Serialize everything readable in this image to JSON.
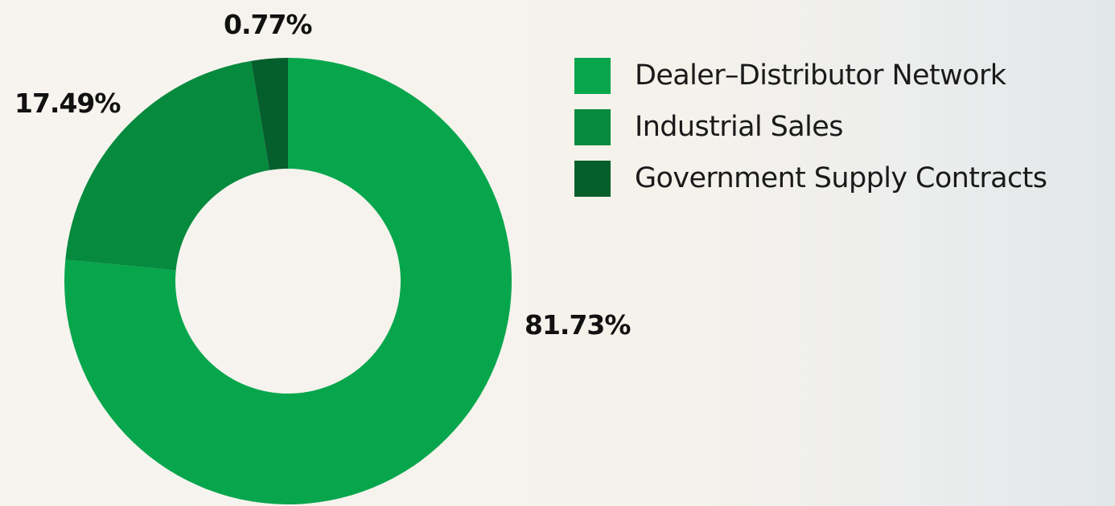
{
  "chart_data": {
    "type": "pie",
    "variant": "donut",
    "title": "",
    "categories": [
      "Dealer–Distributor Network",
      "Industrial Sales",
      "Government Supply Contracts"
    ],
    "values": [
      81.73,
      17.49,
      0.77
    ],
    "value_labels": [
      "81.73%",
      "17.49%",
      "0.77%"
    ],
    "colors": [
      "#07a64c",
      "#068a3e",
      "#045f2d"
    ],
    "start_angle_deg": 0,
    "direction": "clockwise",
    "legend_position": "top-right"
  }
}
